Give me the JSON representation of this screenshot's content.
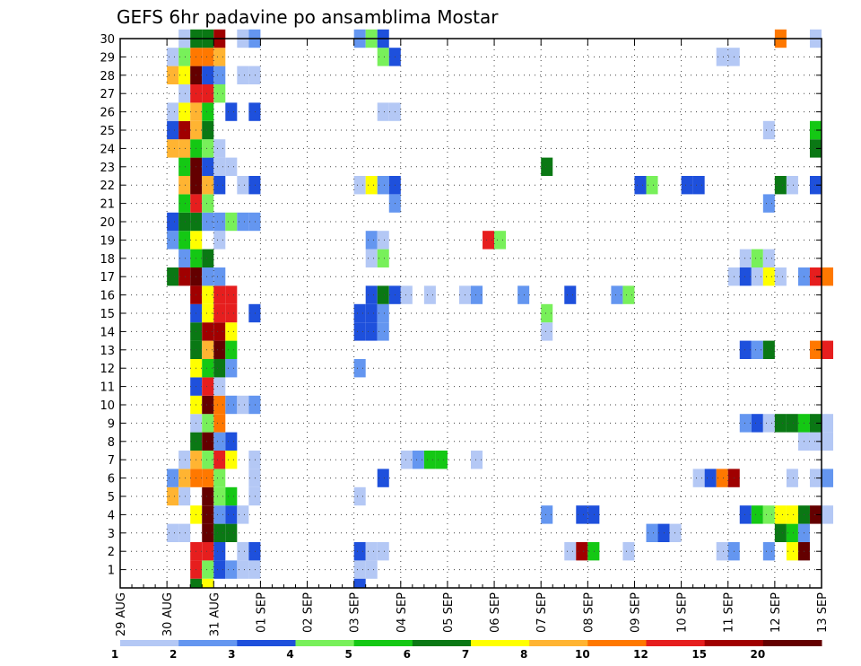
{
  "chart_data": {
    "type": "heatmap",
    "title": "GEFS 6hr padavine po ansamblima Mostar",
    "xlabel": "",
    "ylabel": "",
    "x_ticks": [
      "29 AUG",
      "30 AUG",
      "31 AUG",
      "01 SEP",
      "02 SEP",
      "03 SEP",
      "04 SEP",
      "05 SEP",
      "06 SEP",
      "07 SEP",
      "08 SEP",
      "09 SEP",
      "10 SEP",
      "11 SEP",
      "12 SEP",
      "13 SEP"
    ],
    "x_range_days": [
      0,
      15
    ],
    "step_hours": 6,
    "ylim": [
      0,
      30
    ],
    "y_ticks": [
      1,
      2,
      3,
      4,
      5,
      6,
      7,
      8,
      9,
      10,
      11,
      12,
      13,
      14,
      15,
      16,
      17,
      18,
      19,
      20,
      21,
      22,
      23,
      24,
      25,
      26,
      27,
      28,
      29,
      30
    ],
    "grid": true,
    "color_levels": [
      "1",
      "2",
      "3",
      "4",
      "5",
      "6",
      "7",
      "8",
      "10",
      "12",
      "15",
      "20"
    ],
    "colorbar_colors": [
      "#b4c8f5",
      "#6496f0",
      "#1e50dc",
      "#78f05a",
      "#14c814",
      "#0a7814",
      "#ffff00",
      "#ffb432",
      "#ff7800",
      "#e61e1e",
      "#a00000",
      "#640000"
    ],
    "series": [
      {
        "member": 1,
        "cells": [
          [
            1.5,
            10
          ],
          [
            1.75,
            4
          ],
          [
            2.0,
            3
          ],
          [
            2.25,
            2
          ],
          [
            2.5,
            1
          ],
          [
            2.75,
            1
          ],
          [
            5.0,
            1
          ],
          [
            5.25,
            1
          ]
        ]
      },
      {
        "member": 2,
        "cells": [
          [
            1.5,
            10
          ],
          [
            1.75,
            10
          ],
          [
            2.0,
            3
          ],
          [
            2.5,
            1
          ],
          [
            2.75,
            3
          ],
          [
            5.0,
            3
          ],
          [
            5.25,
            1
          ],
          [
            5.5,
            1
          ],
          [
            9.5,
            1
          ],
          [
            9.75,
            11
          ],
          [
            10.0,
            5
          ],
          [
            10.75,
            1
          ],
          [
            12.75,
            1
          ],
          [
            13.0,
            2
          ],
          [
            13.75,
            2
          ],
          [
            14.25,
            7
          ],
          [
            14.5,
            12
          ]
        ]
      },
      {
        "member": 3,
        "cells": [
          [
            1.0,
            1
          ],
          [
            1.25,
            1
          ],
          [
            1.75,
            12
          ],
          [
            2.0,
            6
          ],
          [
            2.25,
            6
          ],
          [
            11.25,
            2
          ],
          [
            11.5,
            3
          ],
          [
            11.75,
            1
          ],
          [
            14.0,
            6
          ],
          [
            14.25,
            5
          ],
          [
            14.5,
            2
          ]
        ]
      },
      {
        "member": 4,
        "cells": [
          [
            1.5,
            7
          ],
          [
            1.75,
            12
          ],
          [
            2.0,
            2
          ],
          [
            2.25,
            3
          ],
          [
            2.5,
            1
          ],
          [
            9.0,
            2
          ],
          [
            9.75,
            3
          ],
          [
            10.0,
            3
          ],
          [
            13.25,
            3
          ],
          [
            13.5,
            5
          ],
          [
            13.75,
            4
          ],
          [
            14.0,
            7
          ],
          [
            14.25,
            7
          ],
          [
            14.5,
            6
          ],
          [
            14.75,
            12
          ],
          [
            15.0,
            1
          ]
        ]
      },
      {
        "member": 5,
        "cells": [
          [
            1.0,
            8
          ],
          [
            1.25,
            1
          ],
          [
            1.75,
            12
          ],
          [
            2.0,
            4
          ],
          [
            2.25,
            5
          ],
          [
            2.75,
            1
          ],
          [
            5.0,
            1
          ]
        ]
      },
      {
        "member": 6,
        "cells": [
          [
            1.0,
            2
          ],
          [
            1.25,
            8
          ],
          [
            1.5,
            9
          ],
          [
            1.75,
            9
          ],
          [
            2.0,
            4
          ],
          [
            2.75,
            1
          ],
          [
            5.5,
            3
          ],
          [
            12.25,
            1
          ],
          [
            12.5,
            3
          ],
          [
            12.75,
            9
          ],
          [
            13.0,
            11
          ],
          [
            14.25,
            1
          ],
          [
            14.75,
            1
          ],
          [
            15.0,
            2
          ]
        ]
      },
      {
        "member": 7,
        "cells": [
          [
            1.25,
            1
          ],
          [
            1.5,
            8
          ],
          [
            1.75,
            4
          ],
          [
            2.0,
            10
          ],
          [
            2.25,
            7
          ],
          [
            2.75,
            1
          ],
          [
            6.0,
            1
          ],
          [
            6.25,
            2
          ],
          [
            6.5,
            5
          ],
          [
            6.75,
            5
          ],
          [
            7.5,
            1
          ]
        ]
      },
      {
        "member": 8,
        "cells": [
          [
            1.5,
            6
          ],
          [
            1.75,
            12
          ],
          [
            2.0,
            2
          ],
          [
            2.25,
            3
          ],
          [
            14.5,
            1
          ],
          [
            14.75,
            1
          ],
          [
            15.0,
            1
          ]
        ]
      },
      {
        "member": 9,
        "cells": [
          [
            1.5,
            1
          ],
          [
            1.75,
            4
          ],
          [
            2.0,
            9
          ],
          [
            13.25,
            2
          ],
          [
            13.5,
            3
          ],
          [
            13.75,
            1
          ],
          [
            14.0,
            6
          ],
          [
            14.25,
            6
          ],
          [
            14.5,
            5
          ],
          [
            14.75,
            6
          ],
          [
            15.0,
            1
          ]
        ]
      },
      {
        "member": 10,
        "cells": [
          [
            1.5,
            7
          ],
          [
            1.75,
            12
          ],
          [
            2.0,
            9
          ],
          [
            2.25,
            2
          ],
          [
            2.5,
            1
          ],
          [
            2.75,
            2
          ]
        ]
      },
      {
        "member": 11,
        "cells": [
          [
            1.5,
            3
          ],
          [
            1.75,
            10
          ],
          [
            2.0,
            1
          ]
        ]
      },
      {
        "member": 12,
        "cells": [
          [
            1.5,
            7
          ],
          [
            1.75,
            5
          ],
          [
            2.0,
            6
          ],
          [
            2.25,
            2
          ],
          [
            5.0,
            2
          ]
        ]
      },
      {
        "member": 13,
        "cells": [
          [
            1.5,
            6
          ],
          [
            1.75,
            8
          ],
          [
            2.0,
            12
          ],
          [
            2.25,
            5
          ],
          [
            13.25,
            3
          ],
          [
            13.5,
            2
          ],
          [
            13.75,
            6
          ],
          [
            14.75,
            9
          ],
          [
            15.0,
            10
          ]
        ]
      },
      {
        "member": 14,
        "cells": [
          [
            1.5,
            6
          ],
          [
            1.75,
            11
          ],
          [
            2.0,
            11
          ],
          [
            2.25,
            7
          ],
          [
            5.0,
            3
          ],
          [
            5.25,
            3
          ],
          [
            5.5,
            2
          ],
          [
            9.0,
            1
          ]
        ]
      },
      {
        "member": 15,
        "cells": [
          [
            1.5,
            3
          ],
          [
            1.75,
            7
          ],
          [
            2.0,
            10
          ],
          [
            2.25,
            10
          ],
          [
            2.75,
            3
          ],
          [
            5.0,
            3
          ],
          [
            5.25,
            3
          ],
          [
            5.5,
            2
          ],
          [
            9.0,
            4
          ]
        ]
      },
      {
        "member": 16,
        "cells": [
          [
            1.5,
            11
          ],
          [
            1.75,
            7
          ],
          [
            2.0,
            10
          ],
          [
            2.25,
            10
          ],
          [
            5.25,
            3
          ],
          [
            5.5,
            6
          ],
          [
            5.75,
            3
          ],
          [
            6.0,
            1
          ],
          [
            6.5,
            1
          ],
          [
            7.25,
            1
          ],
          [
            7.5,
            2
          ],
          [
            8.5,
            2
          ],
          [
            9.5,
            3
          ],
          [
            10.5,
            2
          ],
          [
            10.75,
            4
          ]
        ]
      },
      {
        "member": 17,
        "cells": [
          [
            1.0,
            6
          ],
          [
            1.25,
            11
          ],
          [
            1.5,
            12
          ],
          [
            1.75,
            2
          ],
          [
            2.0,
            2
          ],
          [
            13.0,
            1
          ],
          [
            13.25,
            3
          ],
          [
            13.5,
            1
          ],
          [
            13.75,
            7
          ],
          [
            14.0,
            1
          ],
          [
            14.5,
            2
          ],
          [
            14.75,
            10
          ],
          [
            15.0,
            9
          ]
        ]
      },
      {
        "member": 18,
        "cells": [
          [
            1.25,
            2
          ],
          [
            1.5,
            5
          ],
          [
            1.75,
            6
          ],
          [
            5.25,
            1
          ],
          [
            5.5,
            4
          ],
          [
            13.25,
            1
          ],
          [
            13.5,
            4
          ],
          [
            13.75,
            1
          ]
        ]
      },
      {
        "member": 19,
        "cells": [
          [
            1.0,
            2
          ],
          [
            1.25,
            5
          ],
          [
            1.5,
            7
          ],
          [
            2.0,
            1
          ],
          [
            5.25,
            2
          ],
          [
            5.5,
            1
          ],
          [
            7.75,
            10
          ],
          [
            8.0,
            4
          ]
        ]
      },
      {
        "member": 20,
        "cells": [
          [
            1.0,
            3
          ],
          [
            1.25,
            6
          ],
          [
            1.5,
            6
          ],
          [
            1.75,
            2
          ],
          [
            2.0,
            2
          ],
          [
            2.25,
            4
          ],
          [
            2.5,
            2
          ],
          [
            2.75,
            2
          ]
        ]
      },
      {
        "member": 21,
        "cells": [
          [
            1.25,
            5
          ],
          [
            1.5,
            10
          ],
          [
            1.75,
            4
          ],
          [
            5.75,
            2
          ],
          [
            13.75,
            2
          ]
        ]
      },
      {
        "member": 22,
        "cells": [
          [
            1.25,
            8
          ],
          [
            1.5,
            12
          ],
          [
            1.75,
            8
          ],
          [
            2.0,
            3
          ],
          [
            2.5,
            1
          ],
          [
            2.75,
            3
          ],
          [
            5.0,
            1
          ],
          [
            5.25,
            7
          ],
          [
            5.5,
            2
          ],
          [
            5.75,
            3
          ],
          [
            11.0,
            3
          ],
          [
            11.25,
            4
          ],
          [
            12.0,
            3
          ],
          [
            12.25,
            3
          ],
          [
            14.0,
            6
          ],
          [
            14.25,
            1
          ],
          [
            14.75,
            3
          ]
        ]
      },
      {
        "member": 23,
        "cells": [
          [
            1.25,
            5
          ],
          [
            1.5,
            12
          ],
          [
            1.75,
            3
          ],
          [
            2.0,
            1
          ],
          [
            2.25,
            1
          ],
          [
            9.0,
            6
          ]
        ]
      },
      {
        "member": 24,
        "cells": [
          [
            1.0,
            8
          ],
          [
            1.25,
            8
          ],
          [
            1.5,
            5
          ],
          [
            1.75,
            4
          ],
          [
            2.0,
            1
          ],
          [
            14.75,
            6
          ]
        ]
      },
      {
        "member": 25,
        "cells": [
          [
            1.0,
            3
          ],
          [
            1.25,
            11
          ],
          [
            1.5,
            8
          ],
          [
            1.75,
            6
          ],
          [
            13.75,
            1
          ],
          [
            14.75,
            5
          ]
        ]
      },
      {
        "member": 26,
        "cells": [
          [
            1.0,
            1
          ],
          [
            1.25,
            7
          ],
          [
            1.5,
            8
          ],
          [
            1.75,
            5
          ],
          [
            2.25,
            3
          ],
          [
            2.75,
            3
          ],
          [
            5.5,
            1
          ],
          [
            5.75,
            1
          ]
        ]
      },
      {
        "member": 27,
        "cells": [
          [
            1.25,
            1
          ],
          [
            1.5,
            10
          ],
          [
            1.75,
            10
          ],
          [
            2.0,
            4
          ]
        ]
      },
      {
        "member": 28,
        "cells": [
          [
            1.0,
            8
          ],
          [
            1.25,
            7
          ],
          [
            1.5,
            12
          ],
          [
            1.75,
            3
          ],
          [
            2.0,
            2
          ],
          [
            2.5,
            1
          ],
          [
            2.75,
            1
          ]
        ]
      },
      {
        "member": 29,
        "cells": [
          [
            1.0,
            1
          ],
          [
            1.25,
            4
          ],
          [
            1.5,
            9
          ],
          [
            1.75,
            9
          ],
          [
            2.0,
            8
          ],
          [
            5.5,
            4
          ],
          [
            5.75,
            3
          ],
          [
            12.75,
            1
          ],
          [
            13.0,
            1
          ]
        ]
      },
      {
        "member": 30,
        "cells": [
          [
            1.25,
            1
          ],
          [
            1.5,
            6
          ],
          [
            1.75,
            6
          ],
          [
            2.0,
            11
          ],
          [
            2.5,
            1
          ],
          [
            2.75,
            2
          ],
          [
            5.0,
            2
          ],
          [
            5.25,
            4
          ],
          [
            5.5,
            3
          ],
          [
            14.0,
            9
          ],
          [
            14.75,
            1
          ]
        ]
      },
      {
        "member": 0,
        "cells": [
          [
            1.5,
            6
          ],
          [
            1.75,
            7
          ],
          [
            5.0,
            3
          ]
        ]
      }
    ]
  }
}
